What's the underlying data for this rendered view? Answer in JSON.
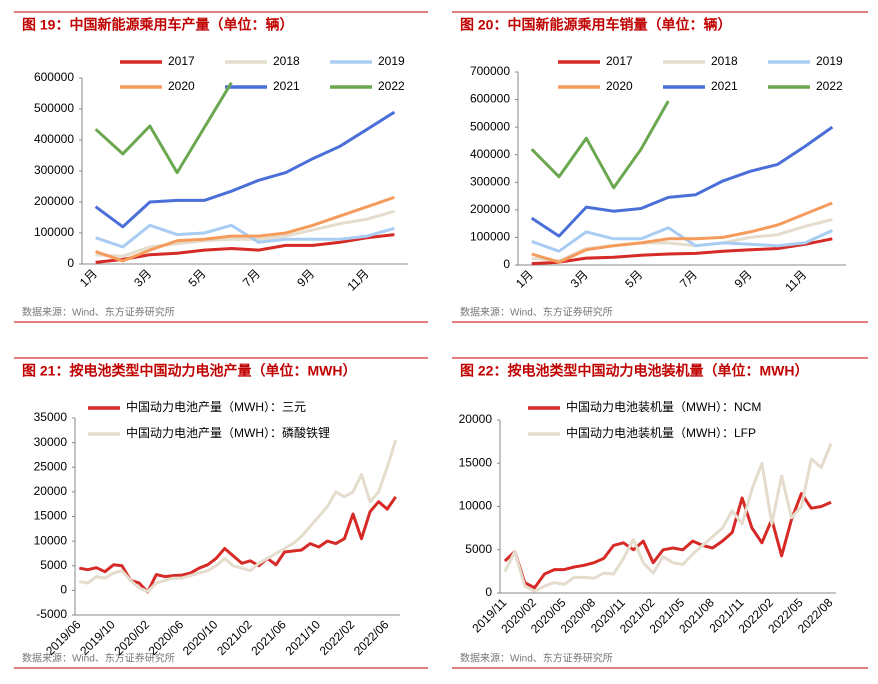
{
  "chart_data": [
    {
      "type": "line",
      "title": "图 19：中国新能源乘用车产量（单位：辆）",
      "source": "数据来源：Wind、东方证券研究所",
      "categories": [
        "1月",
        null,
        "3月",
        null,
        "5月",
        null,
        "7月",
        null,
        "9月",
        null,
        "11月",
        null
      ],
      "ylim": [
        0,
        600000
      ],
      "yticks": [
        0,
        100000,
        200000,
        300000,
        400000,
        500000,
        600000
      ],
      "legend": "upper left",
      "series": [
        {
          "name": "2017",
          "color": "#d62a27",
          "values": [
            5000,
            15000,
            30000,
            35000,
            45000,
            50000,
            45000,
            60000,
            60000,
            70000,
            85000,
            95000
          ]
        },
        {
          "name": "2018",
          "color": "#e4dccd",
          "values": [
            30000,
            25000,
            55000,
            65000,
            75000,
            80000,
            80000,
            90000,
            110000,
            130000,
            145000,
            170000
          ]
        },
        {
          "name": "2019",
          "color": "#a9cdf2",
          "values": [
            85000,
            55000,
            125000,
            95000,
            100000,
            125000,
            70000,
            80000,
            80000,
            80000,
            90000,
            115000
          ]
        },
        {
          "name": "2020",
          "color": "#f59b5b",
          "values": [
            40000,
            10000,
            45000,
            75000,
            80000,
            90000,
            90000,
            100000,
            125000,
            155000,
            185000,
            215000
          ]
        },
        {
          "name": "2021",
          "color": "#4a6fd8",
          "values": [
            185000,
            120000,
            200000,
            205000,
            205000,
            235000,
            270000,
            295000,
            340000,
            380000,
            435000,
            490000
          ]
        },
        {
          "name": "2022",
          "color": "#6aa84f",
          "values": [
            435000,
            355000,
            445000,
            295000,
            440000,
            585000,
            null,
            null,
            null,
            null,
            null,
            null
          ]
        }
      ]
    },
    {
      "type": "line",
      "title": "图 20：中国新能源乘用车销量（单位：辆）",
      "source": "数据来源：Wind、东方证券研究所",
      "categories": [
        "1月",
        null,
        "3月",
        null,
        "5月",
        null,
        "7月",
        null,
        "9月",
        null,
        "11月",
        null
      ],
      "ylim": [
        0,
        700000
      ],
      "yticks": [
        0,
        100000,
        200000,
        300000,
        400000,
        500000,
        600000,
        700000
      ],
      "legend": "upper left",
      "series": [
        {
          "name": "2017",
          "color": "#d62a27",
          "values": [
            5000,
            10000,
            25000,
            28000,
            35000,
            40000,
            42000,
            50000,
            55000,
            60000,
            75000,
            95000
          ]
        },
        {
          "name": "2018",
          "color": "#e4dccd",
          "values": [
            25000,
            15000,
            60000,
            70000,
            80000,
            80000,
            70000,
            80000,
            100000,
            110000,
            140000,
            165000
          ]
        },
        {
          "name": "2019",
          "color": "#a9cdf2",
          "values": [
            85000,
            50000,
            120000,
            95000,
            95000,
            135000,
            70000,
            80000,
            75000,
            70000,
            80000,
            125000
          ]
        },
        {
          "name": "2020",
          "color": "#f59b5b",
          "values": [
            40000,
            10000,
            55000,
            70000,
            80000,
            95000,
            95000,
            100000,
            120000,
            145000,
            185000,
            225000
          ]
        },
        {
          "name": "2021",
          "color": "#4a6fd8",
          "values": [
            170000,
            105000,
            210000,
            195000,
            205000,
            245000,
            255000,
            305000,
            340000,
            365000,
            430000,
            500000
          ]
        },
        {
          "name": "2022",
          "color": "#6aa84f",
          "values": [
            420000,
            320000,
            460000,
            280000,
            420000,
            595000,
            null,
            null,
            null,
            null,
            null,
            null
          ]
        }
      ]
    },
    {
      "type": "line",
      "title": "图 21：按电池类型中国动力电池产量（单位：MWH）",
      "source": "数据来源：Wind、东方证券研究所",
      "categories": [
        "2019/06",
        null,
        null,
        null,
        "2019/10",
        null,
        null,
        null,
        "2020/02",
        null,
        null,
        null,
        "2020/06",
        null,
        null,
        null,
        "2020/10",
        null,
        null,
        null,
        "2021/02",
        null,
        null,
        null,
        "2021/06",
        null,
        null,
        null,
        "2021/10",
        null,
        null,
        null,
        "2022/02",
        null,
        null,
        null,
        "2022/06",
        null
      ],
      "ylim": [
        -5000,
        35000
      ],
      "yticks": [
        -5000,
        0,
        5000,
        10000,
        15000,
        20000,
        25000,
        30000,
        35000
      ],
      "legend": "upper left",
      "series": [
        {
          "name": "中国动力电池产量（MWH）：三元",
          "color": "#d62a27",
          "values": [
            4500,
            4200,
            4600,
            3800,
            5200,
            5000,
            2000,
            1500,
            -300,
            3200,
            2800,
            3000,
            3100,
            3500,
            4500,
            5200,
            6500,
            8500,
            7000,
            5500,
            6000,
            5000,
            6500,
            5200,
            7800,
            8000,
            8200,
            9500,
            8800,
            10000,
            9500,
            10500,
            15500,
            10500,
            16000,
            18000,
            16500,
            19000
          ]
        },
        {
          "name": "中国动力电池产量（MWH）：磷酸铁锂",
          "color": "#e4dccd",
          "values": [
            1800,
            1500,
            2800,
            2500,
            3500,
            4000,
            2000,
            500,
            -200,
            1500,
            2000,
            2500,
            2500,
            3000,
            3500,
            4000,
            5000,
            6500,
            5000,
            4500,
            4000,
            5500,
            6500,
            7500,
            8500,
            9500,
            11000,
            13000,
            15000,
            17000,
            20000,
            19000,
            20000,
            23500,
            18000,
            20000,
            25000,
            30500
          ]
        }
      ]
    },
    {
      "type": "line",
      "title": "图 22：按电池类型中国动力电池装机量（单位：MWH）",
      "source": "数据来源：Wind、东方证券研究所",
      "categories": [
        "2019/11",
        null,
        null,
        "2020/02",
        null,
        null,
        "2020/05",
        null,
        null,
        "2020/08",
        null,
        null,
        "2020/11",
        null,
        null,
        "2021/02",
        null,
        null,
        "2021/05",
        null,
        null,
        "2021/08",
        null,
        null,
        "2021/11",
        null,
        null,
        "2022/02",
        null,
        null,
        "2022/05",
        null,
        null,
        "2022/08"
      ],
      "ylim": [
        0,
        20000
      ],
      "yticks": [
        0,
        5000,
        10000,
        15000,
        20000
      ],
      "legend": "upper left",
      "series": [
        {
          "name": "中国动力电池装机量（MWH）：NCM",
          "color": "#d62a27",
          "values": [
            3700,
            4800,
            1200,
            600,
            2200,
            2700,
            2700,
            3000,
            3200,
            3500,
            4000,
            5500,
            5800,
            5000,
            6000,
            3500,
            5000,
            5200,
            5000,
            6000,
            5500,
            5200,
            6000,
            7000,
            11000,
            7500,
            5800,
            8500,
            4300,
            8500,
            11500,
            9800,
            10000,
            10500
          ]
        },
        {
          "name": "中国动力电池装机量（MWH）：LFP",
          "color": "#e4dccd",
          "values": [
            2500,
            4800,
            800,
            200,
            800,
            1200,
            1000,
            1800,
            1800,
            1700,
            2300,
            2200,
            4000,
            6200,
            3500,
            2300,
            4200,
            3500,
            3300,
            4500,
            5500,
            6500,
            7500,
            9500,
            8000,
            12000,
            15000,
            8000,
            13500,
            8700,
            10000,
            15500,
            14500,
            17300
          ]
        }
      ]
    }
  ]
}
